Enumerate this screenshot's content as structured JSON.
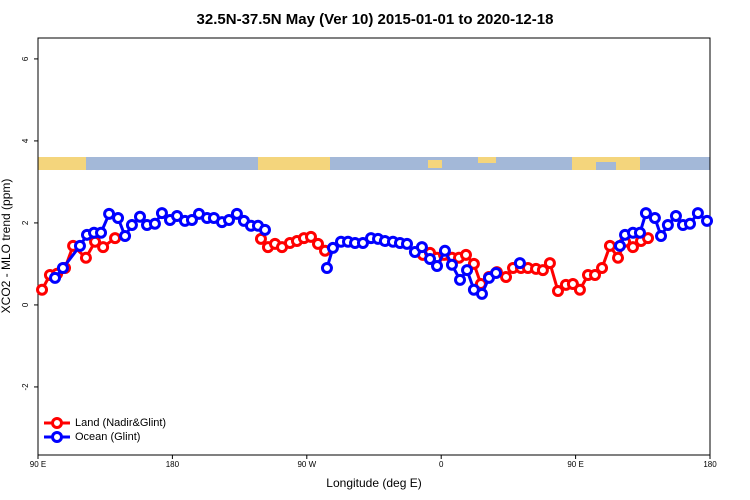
{
  "chart_data": {
    "type": "line",
    "title": "32.5N-37.5N May (Ver 10)   2015-01-01 to 2020-12-18",
    "x_label": "Longitude (deg E)",
    "y_label": "XCO2 - MLO trend (ppm)",
    "xlim": [
      90,
      540
    ],
    "ylim": [
      -3.66,
      6.51
    ],
    "xticks": [
      {
        "value": 90,
        "label": "90 E"
      },
      180,
      {
        "value": 270,
        "label": "90 W"
      },
      {
        "value": 360,
        "label": "0"
      },
      {
        "value": 450,
        "label": "90 E"
      },
      {
        "value": 540,
        "label": "180"
      }
    ],
    "yticks": [
      -2,
      0,
      2,
      4,
      6
    ],
    "legend": "bottom-left",
    "series": [
      {
        "name": "Land (Nadir&Glint)",
        "color": "#ff0000",
        "x": [
          92.7,
          98.0,
          102.8,
          108.1,
          113.5,
          122.1,
          128.2,
          133.6,
          141.6,
          null,
          239.3,
          244.0,
          248.7,
          253.4,
          258.7,
          263.4,
          268.1,
          272.8,
          277.5,
          282.2,
          null,
          347.8,
          352.5,
          357.2,
          361.9,
          367.2,
          371.9,
          376.6,
          381.9,
          386.6,
          392.0,
          397.3,
          403.4,
          408.1,
          413.4,
          418.1,
          423.5,
          428.1,
          432.8,
          438.2,
          443.5,
          448.2,
          452.9,
          458.3,
          463.0,
          467.7,
          473.0,
          478.4,
          483.1,
          488.4,
          493.8,
          498.5
        ],
        "values": [
          0.37,
          0.73,
          0.76,
          0.9,
          1.44,
          1.15,
          1.54,
          1.41,
          1.63,
          null,
          1.61,
          1.41,
          1.49,
          1.41,
          1.51,
          1.56,
          1.63,
          1.66,
          1.49,
          1.32,
          null,
          1.22,
          1.27,
          1.15,
          1.22,
          1.15,
          1.15,
          1.22,
          1.0,
          0.51,
          0.68,
          0.8,
          0.68,
          0.9,
          0.9,
          0.9,
          0.88,
          0.85,
          1.02,
          0.34,
          0.49,
          0.51,
          0.37,
          0.73,
          0.73,
          0.9,
          1.44,
          1.15,
          1.54,
          1.41,
          1.56,
          1.63
        ]
      },
      {
        "name": "Ocean (Glint)",
        "color": "#0000ff",
        "x": [
          101.4,
          106.7,
          118.1,
          122.8,
          127.5,
          132.2,
          137.6,
          143.6,
          148.3,
          152.9,
          158.3,
          163.0,
          168.3,
          173.0,
          178.4,
          183.1,
          188.4,
          193.1,
          197.8,
          203.2,
          207.8,
          213.2,
          217.9,
          223.2,
          227.9,
          232.6,
          237.3,
          242.0,
          null,
          283.5,
          287.5,
          292.9,
          297.6,
          302.3,
          307.6,
          313.0,
          317.7,
          322.3,
          327.7,
          332.4,
          337.1,
          342.4,
          347.1,
          352.5,
          357.2,
          362.5,
          367.2,
          372.6,
          377.3,
          381.9,
          387.3,
          392.0,
          396.7,
          null,
          412.7,
          null,
          479.7,
          483.1,
          488.4,
          493.1,
          497.1,
          503.1,
          507.2,
          511.8,
          517.2,
          521.9,
          526.6,
          531.9,
          538.0
        ],
        "values": [
          0.66,
          0.9,
          1.44,
          1.71,
          1.76,
          1.76,
          2.22,
          2.12,
          1.68,
          1.95,
          2.15,
          1.95,
          1.98,
          2.24,
          2.07,
          2.17,
          2.05,
          2.07,
          2.22,
          2.12,
          2.12,
          2.02,
          2.07,
          2.22,
          2.05,
          1.93,
          1.93,
          1.83,
          null,
          0.9,
          1.39,
          1.54,
          1.54,
          1.51,
          1.51,
          1.63,
          1.61,
          1.56,
          1.54,
          1.51,
          1.49,
          1.29,
          1.41,
          1.12,
          0.95,
          1.32,
          0.98,
          0.61,
          0.85,
          0.37,
          0.27,
          0.66,
          0.78,
          null,
          1.02,
          null,
          1.44,
          1.71,
          1.76,
          1.76,
          2.24,
          2.12,
          1.68,
          1.95,
          2.17,
          1.95,
          1.98,
          2.24,
          2.05
        ]
      }
    ]
  }
}
